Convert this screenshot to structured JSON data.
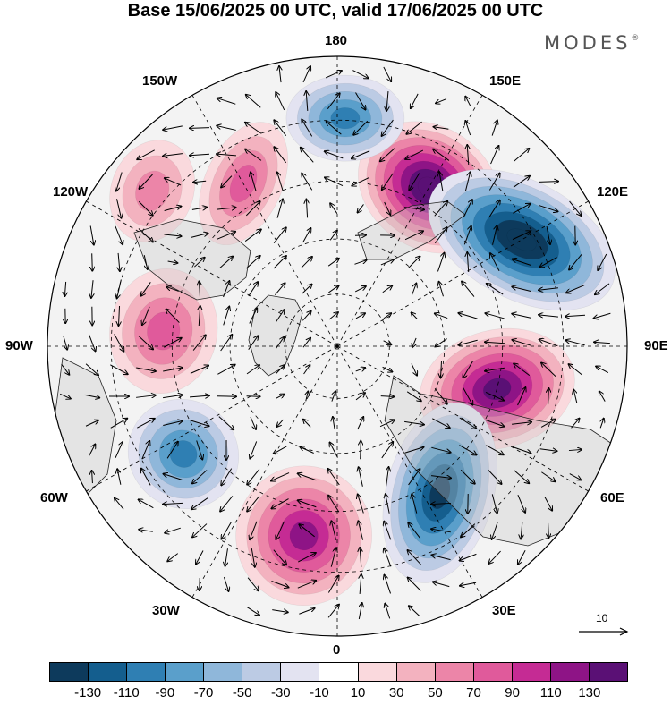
{
  "title": "Base 15/06/2025 00 UTC, valid 17/06/2025 00 UTC",
  "brand": "MODES",
  "brand_mark": "®",
  "longitude_labels": {
    "top": "180",
    "top_left": "150W",
    "top_right": "150E",
    "upper_left": "120W",
    "upper_right": "120E",
    "left": "90W",
    "right": "90E",
    "lower_left": "60W",
    "lower_right": "60E",
    "bottom_left": "30W",
    "bottom_right": "30E",
    "bottom": "0"
  },
  "reference_vector": {
    "label": "10"
  },
  "colorbar": {
    "colors": [
      "#0d3a5c",
      "#145e8e",
      "#2f7fb3",
      "#5a9fcb",
      "#8fb7da",
      "#bccbe4",
      "#e3e3f1",
      "#ffffff",
      "#fad9dd",
      "#f3b2bf",
      "#ec85a8",
      "#e05a9b",
      "#c52b94",
      "#8e1486",
      "#5a1075"
    ],
    "labels": [
      "-130",
      "-110",
      "-90",
      "-70",
      "-50",
      "-30",
      "-10",
      "10",
      "30",
      "50",
      "70",
      "90",
      "110",
      "130"
    ]
  },
  "map": {
    "projection": "north polar stereographic",
    "field": "anomaly contours with wind vectors",
    "anomaly_centers": [
      {
        "lon": 150,
        "sign": "positive",
        "level": 130
      },
      {
        "lon": 120,
        "sign": "negative",
        "level": -130
      },
      {
        "lon": 75,
        "sign": "positive",
        "level": 110
      },
      {
        "lon": 35,
        "sign": "negative",
        "level": -110
      },
      {
        "lon": -10,
        "sign": "positive",
        "level": 90
      },
      {
        "lon": -55,
        "sign": "negative",
        "level": -70
      },
      {
        "lon": -95,
        "sign": "positive",
        "level": 50
      },
      {
        "lon": -150,
        "sign": "positive",
        "level": 50
      },
      {
        "lon": 178,
        "sign": "negative",
        "level": -70
      },
      {
        "lon": -130,
        "sign": "positive",
        "level": 30
      }
    ]
  }
}
